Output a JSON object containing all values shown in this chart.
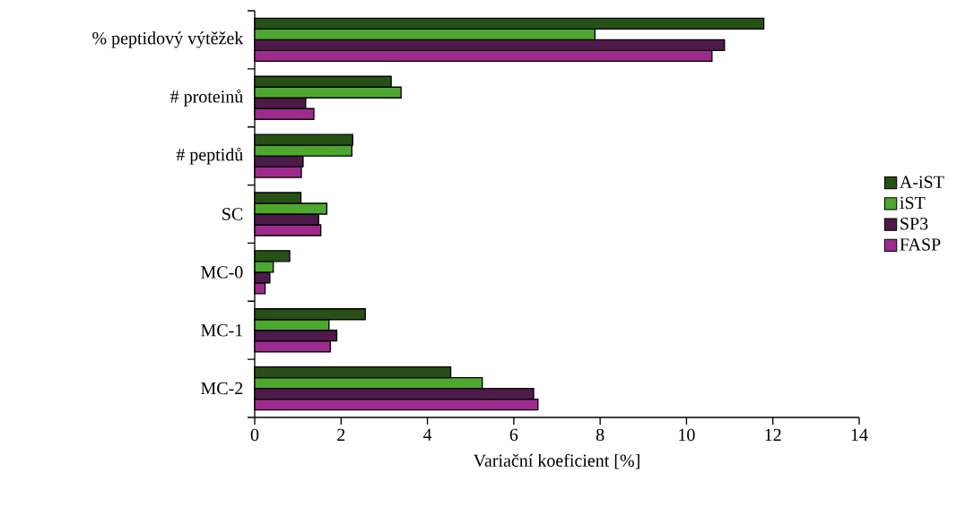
{
  "chart_data": {
    "type": "bar",
    "orientation": "horizontal",
    "xlabel": "Variační koeficient [%]",
    "categories": [
      "% peptidový výtěžek",
      "# proteinů",
      "# peptidů",
      "SC",
      "MC-0",
      "MC-1",
      "MC-2"
    ],
    "series": [
      {
        "name": "A-iST",
        "color": "#265016",
        "values": [
          11.79,
          3.16,
          2.27,
          1.07,
          0.81,
          2.56,
          4.54
        ]
      },
      {
        "name": "iST",
        "color": "#4ea72e",
        "values": [
          7.88,
          3.39,
          2.25,
          1.67,
          0.43,
          1.72,
          5.27
        ]
      },
      {
        "name": "SP3",
        "color": "#4e1a4a",
        "values": [
          10.88,
          1.18,
          1.12,
          1.48,
          0.35,
          1.9,
          6.46
        ]
      },
      {
        "name": "FASP",
        "color": "#9e2a8e",
        "values": [
          10.59,
          1.37,
          1.08,
          1.53,
          0.24,
          1.75,
          6.56
        ]
      }
    ],
    "xlim": [
      0,
      14
    ],
    "xticks": [
      0,
      2,
      4,
      6,
      8,
      10,
      12,
      14
    ],
    "legend": "right",
    "grid": false
  }
}
